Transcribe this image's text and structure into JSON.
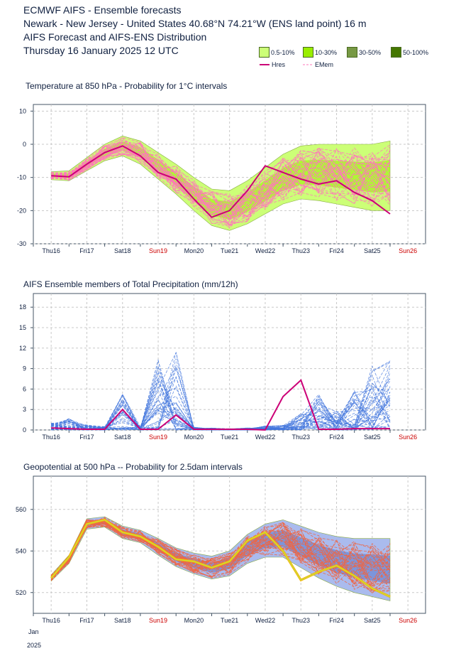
{
  "header": {
    "line1": "ECMWF AIFS - Ensemble forecasts",
    "line2": "Newark - New Jersey - United States 40.68°N 74.21°W (ENS land point) 16 m",
    "line3": "AIFS Forecast and AIFS-ENS Distribution",
    "line4": "Thursday 16 January 2025 12 UTC"
  },
  "legend": {
    "boxes": [
      {
        "label": "0.5-10%",
        "color": "#ccff77"
      },
      {
        "label": "10-30%",
        "color": "#99ee00"
      },
      {
        "label": "30-50%",
        "color": "#779944"
      },
      {
        "label": "50-100%",
        "color": "#447700"
      }
    ],
    "hres_label": "Hres",
    "emem_label": "EMem",
    "hres_color": "#cc0077",
    "emem_color": "#ff77bb"
  },
  "x_axis": {
    "labels": [
      "Thu16",
      "Fri17",
      "Sat18",
      "Sun19",
      "Mon20",
      "Tue21",
      "Wed22",
      "Thu23",
      "Fri24",
      "Sat25",
      "Sun26"
    ],
    "weekend_color": "#cc0000",
    "footer_month": "Jan",
    "footer_year": "2025"
  },
  "chart_data": [
    {
      "type": "line",
      "title": "Temperature at 850 hPa - Probability for 1°C intervals",
      "ylim": [
        -30,
        12
      ],
      "yticks": [
        -30,
        -20,
        -10,
        0,
        10
      ],
      "x_days": [
        0.5,
        1.0,
        1.5,
        2.0,
        2.5,
        3.0,
        3.5,
        4.0,
        4.5,
        5.0,
        5.5,
        6.0,
        6.5,
        7.0,
        7.5,
        8.0,
        8.5,
        9.0,
        9.5,
        10.0
      ],
      "hres": [
        -9.5,
        -9.8,
        -6,
        -2.5,
        -0.5,
        -3.5,
        -8.5,
        -10.5,
        -16.5,
        -22,
        -20,
        -14,
        -6.5,
        -8.5,
        -10.5,
        -12,
        -11,
        -14.5,
        -17,
        -21
      ],
      "ens_mean": [
        -9.5,
        -9.5,
        -6,
        -2.5,
        -0.5,
        -2.5,
        -6.5,
        -10.5,
        -15,
        -19,
        -20,
        -17.5,
        -14,
        -10.5,
        -8.5,
        -8.5,
        -9,
        -9.5,
        -10,
        -9.5
      ],
      "ens_spread": [
        1.2,
        1.5,
        2,
        2.5,
        3,
        3.5,
        4,
        4.5,
        5,
        5.5,
        6,
        6.5,
        7,
        7.5,
        8,
        8.5,
        9,
        9.5,
        10,
        10.5
      ],
      "colors": {
        "hres": "#cc0077",
        "members": "#ff77bb",
        "band_outer": "#ccff77",
        "band_inner": "#99ee00"
      }
    },
    {
      "type": "line",
      "title": "AIFS Ensemble members of Total Precipitation (mm/12h)",
      "ylim": [
        0,
        20
      ],
      "yticks": [
        0,
        3,
        6,
        9,
        12,
        15,
        18
      ],
      "x_days": [
        0.5,
        1.0,
        1.5,
        2.0,
        2.5,
        3.0,
        3.5,
        4.0,
        4.5,
        5.0,
        5.5,
        6.0,
        6.5,
        7.0,
        7.5,
        8.0,
        8.5,
        9.0,
        9.5,
        10.0
      ],
      "hres": [
        0.3,
        0.2,
        0.1,
        0.1,
        3.0,
        0.1,
        0.1,
        2.2,
        0.1,
        0.1,
        0.1,
        0.1,
        0.0,
        4.9,
        7.3,
        0.1,
        0.1,
        0.2,
        0.2,
        0.2
      ],
      "member_peaks": [
        1.0,
        1.9,
        0.8,
        0.5,
        5.3,
        0.5,
        10.4,
        11.6,
        0.4,
        0.3,
        0.2,
        0.3,
        0.6,
        0.8,
        2.5,
        5.7,
        2.8,
        6.1,
        9.6,
        10.6
      ],
      "colors": {
        "hres": "#cc0077",
        "members": "#4477dd"
      }
    },
    {
      "type": "line",
      "title": "Geopotential at 500 hPa -- Probability for 2.5dam intervals",
      "ylim": [
        510,
        576
      ],
      "yticks": [
        520,
        540,
        560
      ],
      "x_days": [
        0.5,
        1.0,
        1.5,
        2.0,
        2.5,
        3.0,
        3.5,
        4.0,
        4.5,
        5.0,
        5.5,
        6.0,
        6.5,
        7.0,
        7.5,
        8.0,
        8.5,
        9.0,
        9.5,
        10.0
      ],
      "hres": [
        527,
        537,
        553,
        555,
        549,
        547,
        542,
        536,
        535,
        532,
        535,
        545,
        549,
        540,
        526,
        530,
        533,
        528,
        522,
        518
      ],
      "ens_mean": [
        527,
        536,
        553,
        554,
        549,
        547,
        542,
        537,
        534,
        532,
        534,
        541,
        545,
        546,
        542,
        538,
        535,
        533,
        532,
        531
      ],
      "ens_spread": [
        1.5,
        2,
        2.5,
        2.5,
        3,
        3,
        4,
        4.5,
        5,
        5.5,
        6,
        7,
        8,
        9,
        10,
        11,
        12,
        13,
        14,
        15
      ],
      "colors": {
        "hres": "#ffaa00",
        "hres_inner": "#ccdd33",
        "members": "#ee6644",
        "band_outer": "#aabbee",
        "band_inner": "#5577cc"
      }
    }
  ]
}
